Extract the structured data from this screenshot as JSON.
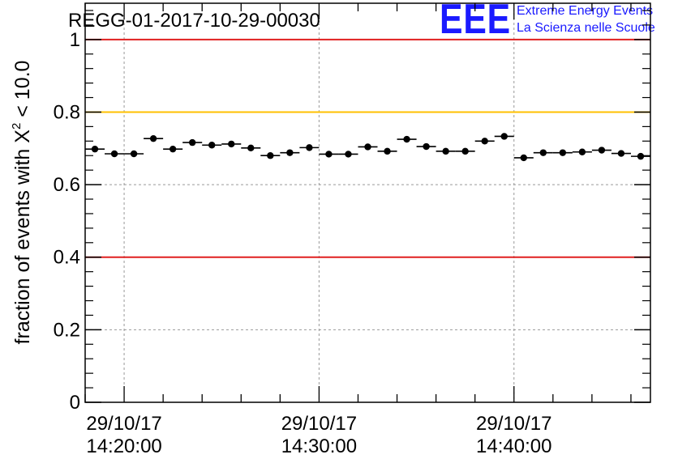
{
  "logo": {
    "mark": "EEE",
    "line1": "Extreme Energy Events",
    "line2": "La Scienza nelle Scuole",
    "color": "#1a1aff"
  },
  "chart_data": {
    "type": "scatter",
    "title": "REGG-01-2017-10-29-00030",
    "xlabel": "",
    "ylabel_prefix": "fraction of events with ",
    "ylabel_symbol": "X",
    "ylabel_superscript": "2",
    "ylabel_suffix": " < 10.0",
    "x_unit": "minutes after 29/10/17 14:20:00",
    "xlim": [
      -2,
      27
    ],
    "ylim": [
      0,
      1.1
    ],
    "y_ticks": [
      {
        "value": 0,
        "label": "0"
      },
      {
        "value": 0.2,
        "label": "0.2"
      },
      {
        "value": 0.4,
        "label": "0.4"
      },
      {
        "value": 0.6,
        "label": "0.6"
      },
      {
        "value": 0.8,
        "label": "0.8"
      },
      {
        "value": 1,
        "label": "1"
      }
    ],
    "x_ticks": [
      {
        "value": 0,
        "date": "29/10/17",
        "time": "14:20:00"
      },
      {
        "value": 10,
        "date": "29/10/17",
        "time": "14:30:00"
      },
      {
        "value": 20,
        "date": "29/10/17",
        "time": "14:40:00"
      }
    ],
    "grid": true,
    "reference_lines": [
      {
        "value": 1.0,
        "color": "#e02020"
      },
      {
        "value": 0.8,
        "color": "#ffc000"
      },
      {
        "value": 0.4,
        "color": "#e02020"
      }
    ],
    "bin_width": 1.0,
    "series": [
      {
        "name": "fraction",
        "x": [
          -1.5,
          -0.5,
          0.5,
          1.5,
          2.5,
          3.5,
          4.5,
          5.5,
          6.5,
          7.5,
          8.5,
          9.5,
          10.5,
          11.5,
          12.5,
          13.5,
          14.5,
          15.5,
          16.5,
          17.5,
          18.5,
          19.5,
          20.5,
          21.5,
          22.5,
          23.5,
          24.5,
          25.5,
          26.5
        ],
        "y": [
          0.698,
          0.685,
          0.685,
          0.727,
          0.698,
          0.716,
          0.709,
          0.712,
          0.701,
          0.68,
          0.688,
          0.702,
          0.684,
          0.684,
          0.704,
          0.692,
          0.725,
          0.705,
          0.692,
          0.692,
          0.72,
          0.733,
          0.674,
          0.688,
          0.688,
          0.69,
          0.695,
          0.686,
          0.678
        ],
        "error": 0.006,
        "color": "#000000"
      }
    ]
  }
}
